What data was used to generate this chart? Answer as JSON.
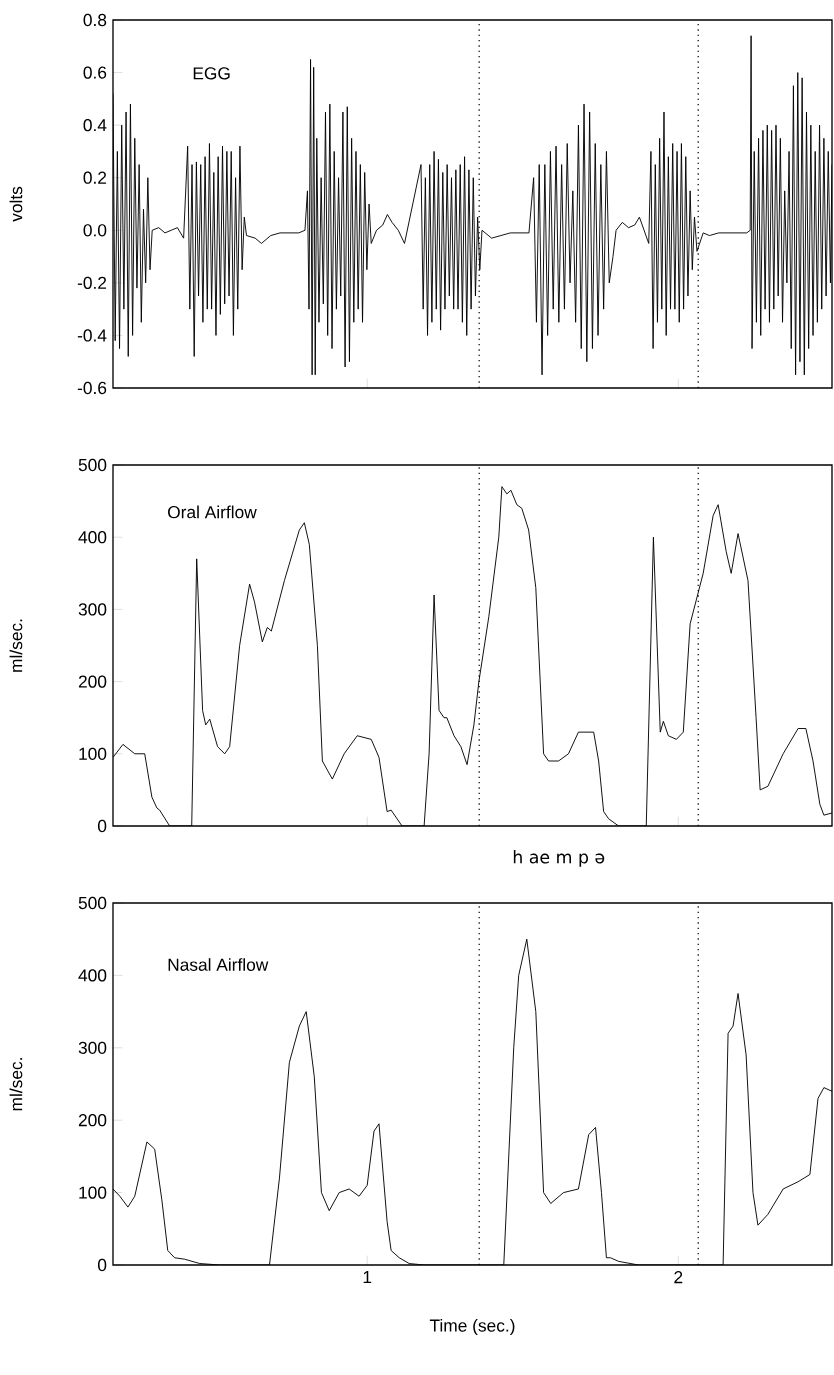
{
  "chart_data": [
    {
      "type": "line",
      "title": "EGG",
      "ylabel": "volts",
      "xlim": [
        0.183,
        2.494
      ],
      "ylim": [
        -0.6,
        0.8
      ],
      "xticks": [
        1,
        2
      ],
      "yticks": [
        0.8,
        0.6,
        0.4,
        0.2,
        {
          "value": 0,
          "label": "0.0"
        },
        -0.2,
        -0.4,
        -0.6
      ],
      "tick_labels": "y",
      "ref_lines": [
        {
          "axis": "x",
          "value": 1.36,
          "line_style": "dotted"
        },
        {
          "axis": "x",
          "value": 2.064,
          "line_style": "dotted"
        }
      ],
      "series": [
        {
          "color": "#000000",
          "x": [
            0.183,
            0.19,
            0.197,
            0.204,
            0.211,
            0.218,
            0.225,
            0.232,
            0.239,
            0.246,
            0.253,
            0.26,
            0.267,
            0.274,
            0.281,
            0.288,
            0.295,
            0.302,
            0.309,
            0.33,
            0.35,
            0.37,
            0.39,
            0.41,
            0.423,
            0.43,
            0.437,
            0.444,
            0.451,
            0.458,
            0.465,
            0.472,
            0.479,
            0.486,
            0.493,
            0.5,
            0.507,
            0.514,
            0.521,
            0.528,
            0.535,
            0.542,
            0.549,
            0.556,
            0.563,
            0.57,
            0.577,
            0.584,
            0.591,
            0.598,
            0.605,
            0.612,
            0.64,
            0.66,
            0.69,
            0.72,
            0.75,
            0.78,
            0.8,
            0.808,
            0.813,
            0.818,
            0.823,
            0.828,
            0.833,
            0.838,
            0.845,
            0.852,
            0.859,
            0.866,
            0.873,
            0.88,
            0.887,
            0.894,
            0.901,
            0.908,
            0.915,
            0.922,
            0.929,
            0.936,
            0.943,
            0.95,
            0.957,
            0.964,
            0.971,
            0.978,
            0.985,
            0.992,
            0.999,
            1.006,
            1.013,
            1.03,
            1.05,
            1.065,
            1.08,
            1.1,
            1.12,
            1.173,
            1.18,
            1.187,
            1.194,
            1.201,
            1.208,
            1.215,
            1.222,
            1.229,
            1.236,
            1.243,
            1.25,
            1.257,
            1.264,
            1.271,
            1.278,
            1.285,
            1.292,
            1.299,
            1.306,
            1.313,
            1.32,
            1.327,
            1.334,
            1.341,
            1.348,
            1.355,
            1.362,
            1.369,
            1.4,
            1.43,
            1.46,
            1.49,
            1.52,
            1.535,
            1.544,
            1.553,
            1.562,
            1.571,
            1.58,
            1.589,
            1.598,
            1.607,
            1.616,
            1.625,
            1.634,
            1.643,
            1.652,
            1.661,
            1.67,
            1.679,
            1.688,
            1.697,
            1.706,
            1.715,
            1.724,
            1.733,
            1.742,
            1.751,
            1.76,
            1.769,
            1.778,
            1.79,
            1.8,
            1.82,
            1.84,
            1.86,
            1.875,
            1.89,
            1.905,
            1.912,
            1.919,
            1.926,
            1.933,
            1.94,
            1.947,
            1.954,
            1.961,
            1.968,
            1.975,
            1.982,
            1.989,
            1.996,
            2.003,
            2.01,
            2.017,
            2.024,
            2.031,
            2.038,
            2.045,
            2.052,
            2.06,
            2.08,
            2.1,
            2.13,
            2.16,
            2.19,
            2.22,
            2.231,
            2.234,
            2.237,
            2.244,
            2.251,
            2.258,
            2.265,
            2.272,
            2.279,
            2.286,
            2.293,
            2.3,
            2.307,
            2.314,
            2.321,
            2.328,
            2.335,
            2.342,
            2.349,
            2.356,
            2.363,
            2.37,
            2.377,
            2.384,
            2.391,
            2.398,
            2.405,
            2.412,
            2.419,
            2.426,
            2.433,
            2.44,
            2.447,
            2.454,
            2.461,
            2.468,
            2.475,
            2.482,
            2.489,
            2.494
          ],
          "values": [
            0.52,
            -0.42,
            0.3,
            -0.45,
            0.4,
            -0.3,
            0.45,
            -0.48,
            0.48,
            -0.4,
            0.35,
            -0.22,
            0.25,
            -0.35,
            0.08,
            -0.2,
            0.2,
            -0.15,
            0.0,
            0.01,
            -0.01,
            0.0,
            0.01,
            -0.03,
            0.32,
            -0.3,
            0.25,
            -0.48,
            0.26,
            -0.25,
            0.25,
            -0.35,
            0.28,
            -0.3,
            0.33,
            -0.3,
            0.22,
            -0.4,
            0.28,
            -0.32,
            0.32,
            -0.28,
            0.3,
            -0.25,
            0.3,
            -0.4,
            0.2,
            -0.3,
            0.32,
            -0.15,
            0.05,
            -0.02,
            -0.03,
            -0.05,
            -0.02,
            -0.01,
            -0.01,
            -0.01,
            0.0,
            0.15,
            -0.3,
            0.65,
            -0.55,
            0.62,
            -0.55,
            0.35,
            -0.35,
            0.2,
            -0.28,
            0.45,
            -0.4,
            0.48,
            -0.45,
            0.3,
            -0.3,
            0.2,
            -0.25,
            0.45,
            -0.52,
            0.47,
            -0.5,
            0.35,
            -0.35,
            0.3,
            -0.3,
            0.25,
            -0.35,
            0.22,
            -0.15,
            0.1,
            -0.05,
            0.0,
            0.02,
            0.06,
            0.03,
            0.0,
            -0.05,
            0.25,
            -0.3,
            0.2,
            -0.4,
            0.25,
            -0.35,
            0.3,
            -0.3,
            0.27,
            -0.38,
            0.22,
            -0.3,
            0.25,
            -0.25,
            0.2,
            -0.3,
            0.23,
            -0.3,
            0.25,
            -0.35,
            0.28,
            -0.4,
            0.23,
            -0.3,
            0.2,
            -0.25,
            0.05,
            -0.15,
            0.0,
            -0.03,
            -0.02,
            -0.01,
            -0.01,
            -0.01,
            0.2,
            -0.35,
            0.25,
            -0.55,
            0.25,
            -0.4,
            0.3,
            -0.3,
            0.32,
            -0.35,
            0.25,
            -0.3,
            0.33,
            -0.2,
            0.15,
            -0.35,
            0.4,
            -0.45,
            0.48,
            -0.5,
            0.45,
            -0.45,
            0.33,
            -0.4,
            0.25,
            -0.3,
            0.3,
            -0.2,
            -0.1,
            0.0,
            0.03,
            0.01,
            0.02,
            0.05,
            0.0,
            -0.05,
            0.3,
            -0.45,
            0.25,
            -0.35,
            0.35,
            -0.3,
            0.45,
            -0.4,
            0.28,
            -0.3,
            0.33,
            -0.3,
            0.3,
            -0.35,
            0.33,
            -0.3,
            0.28,
            -0.25,
            0.15,
            -0.15,
            0.05,
            -0.08,
            -0.01,
            -0.02,
            -0.01,
            -0.01,
            -0.01,
            -0.01,
            0.0,
            0.74,
            -0.45,
            0.3,
            -0.35,
            0.35,
            -0.4,
            0.38,
            -0.3,
            0.4,
            -0.35,
            0.38,
            -0.3,
            0.4,
            -0.25,
            0.35,
            -0.35,
            0.15,
            -0.2,
            0.3,
            -0.45,
            0.55,
            -0.55,
            0.6,
            -0.5,
            0.58,
            -0.55,
            0.45,
            -0.45,
            0.4,
            -0.4,
            0.3,
            -0.35,
            0.4,
            -0.3,
            0.35,
            -0.25,
            0.3,
            -0.2,
            0.25
          ]
        }
      ]
    },
    {
      "type": "line",
      "title": "Oral Airflow",
      "ylabel": "ml/sec.",
      "xlim": [
        0.183,
        2.494
      ],
      "ylim": [
        0,
        500
      ],
      "xticks": [
        1,
        2
      ],
      "yticks": [
        0,
        100,
        200,
        300,
        400,
        500
      ],
      "tick_labels": "y",
      "annotations": [
        "h   ae  m p ə"
      ],
      "ref_lines": [
        {
          "axis": "x",
          "value": 1.36,
          "line_style": "dotted"
        },
        {
          "axis": "x",
          "value": 2.064,
          "line_style": "dotted"
        }
      ],
      "series": [
        {
          "color": "#000000",
          "x": [
            0.183,
            0.215,
            0.253,
            0.285,
            0.308,
            0.324,
            0.333,
            0.365,
            0.429,
            0.436,
            0.452,
            0.471,
            0.481,
            0.494,
            0.519,
            0.542,
            0.558,
            0.59,
            0.622,
            0.638,
            0.663,
            0.679,
            0.692,
            0.734,
            0.782,
            0.798,
            0.814,
            0.84,
            0.856,
            0.888,
            0.926,
            0.968,
            1.013,
            1.038,
            1.064,
            1.077,
            1.112,
            1.183,
            1.199,
            1.215,
            1.231,
            1.247,
            1.256,
            1.279,
            1.301,
            1.321,
            1.343,
            1.359,
            1.391,
            1.423,
            1.433,
            1.449,
            1.462,
            1.481,
            1.497,
            1.519,
            1.542,
            1.567,
            1.583,
            1.615,
            1.647,
            1.679,
            1.728,
            1.744,
            1.76,
            1.776,
            1.808,
            1.897,
            1.92,
            1.942,
            1.952,
            1.968,
            1.994,
            2.016,
            2.038,
            2.08,
            2.112,
            2.128,
            2.154,
            2.17,
            2.192,
            2.224,
            2.25,
            2.263,
            2.288,
            2.337,
            2.385,
            2.41,
            2.433,
            2.455,
            2.468,
            2.494
          ],
          "values": [
            95,
            113,
            100,
            100,
            40,
            25,
            22,
            0,
            0,
            0,
            370,
            160,
            140,
            148,
            110,
            100,
            110,
            250,
            335,
            310,
            255,
            275,
            270,
            340,
            410,
            420,
            390,
            250,
            90,
            65,
            100,
            125,
            120,
            95,
            20,
            22,
            0,
            0,
            100,
            320,
            160,
            150,
            150,
            125,
            110,
            85,
            140,
            200,
            290,
            400,
            470,
            460,
            465,
            445,
            440,
            410,
            330,
            100,
            90,
            90,
            100,
            130,
            130,
            90,
            20,
            10,
            0,
            0,
            400,
            130,
            145,
            125,
            120,
            130,
            280,
            350,
            430,
            445,
            380,
            350,
            405,
            340,
            150,
            50,
            55,
            100,
            135,
            135,
            90,
            30,
            15,
            18
          ]
        }
      ]
    },
    {
      "type": "line",
      "title": "Nasal Airflow",
      "ylabel": "ml/sec.",
      "xlabel": "Time (sec.)",
      "xlim": [
        0.183,
        2.494
      ],
      "ylim": [
        0,
        500
      ],
      "xticks": [
        1,
        2
      ],
      "yticks": [
        0,
        100,
        200,
        300,
        400,
        500
      ],
      "ref_lines": [
        {
          "axis": "x",
          "value": 1.36,
          "line_style": "dotted"
        },
        {
          "axis": "x",
          "value": 2.064,
          "line_style": "dotted"
        }
      ],
      "series": [
        {
          "color": "#000000",
          "x": [
            0.183,
            0.205,
            0.231,
            0.253,
            0.292,
            0.317,
            0.34,
            0.359,
            0.381,
            0.413,
            0.462,
            0.526,
            0.686,
            0.718,
            0.75,
            0.782,
            0.804,
            0.83,
            0.853,
            0.878,
            0.91,
            0.942,
            0.974,
            1.0,
            1.022,
            1.038,
            1.064,
            1.077,
            1.103,
            1.135,
            1.183,
            1.439,
            1.471,
            1.487,
            1.513,
            1.542,
            1.567,
            1.59,
            1.631,
            1.679,
            1.712,
            1.734,
            1.753,
            1.769,
            1.782,
            1.808,
            1.872,
            2.144,
            2.16,
            2.176,
            2.192,
            2.218,
            2.24,
            2.256,
            2.288,
            2.337,
            2.385,
            2.423,
            2.449,
            2.468,
            2.494
          ],
          "values": [
            105,
            95,
            80,
            95,
            170,
            160,
            90,
            20,
            10,
            8,
            2,
            0,
            0,
            120,
            280,
            330,
            350,
            260,
            100,
            75,
            100,
            105,
            95,
            110,
            185,
            195,
            60,
            20,
            10,
            2,
            0,
            0,
            300,
            400,
            450,
            350,
            100,
            85,
            100,
            105,
            180,
            190,
            100,
            10,
            10,
            5,
            0,
            0,
            320,
            330,
            375,
            290,
            100,
            55,
            70,
            105,
            115,
            125,
            230,
            245,
            240
          ]
        }
      ]
    }
  ]
}
